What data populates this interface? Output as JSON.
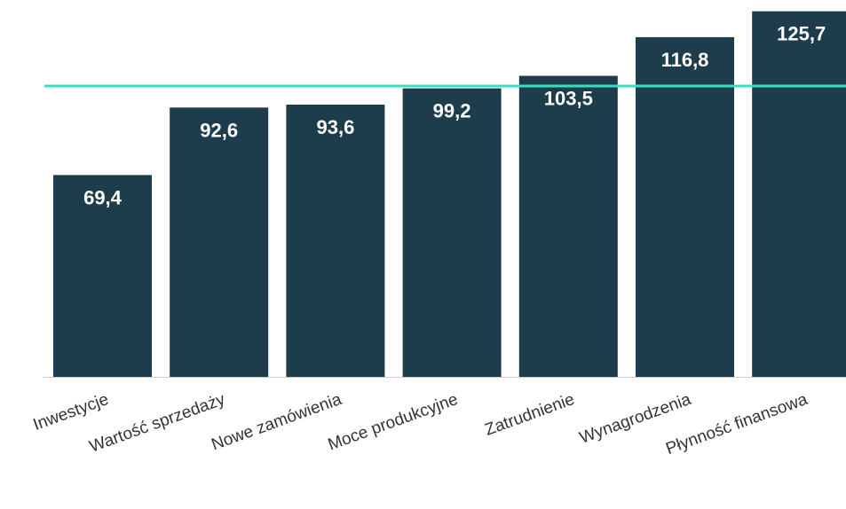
{
  "chart_data": {
    "type": "bar",
    "title": "",
    "xlabel": "",
    "ylabel": "",
    "categories": [
      "Inwestycje",
      "Wartość sprzedaży",
      "Nowe zamówienia",
      "Moce produkcyjne",
      "Zatrudnienie",
      "Wynagrodzenia",
      "Płynność finansowa"
    ],
    "values": [
      69.4,
      92.6,
      93.6,
      99.2,
      103.5,
      116.8,
      125.7
    ],
    "value_labels": [
      "69,4",
      "92,6",
      "93,6",
      "99,2",
      "103,5",
      "116,8",
      "125,7"
    ],
    "reference_line": {
      "value": 100
    },
    "ylim": [
      0,
      130
    ],
    "grid": false,
    "legend": "none",
    "colors": {
      "bar": "#1e3d4c",
      "reference_line": "#35e0c0",
      "axis": "#cccccc",
      "value_text": "#ffffff",
      "category_text": "#333333"
    }
  }
}
